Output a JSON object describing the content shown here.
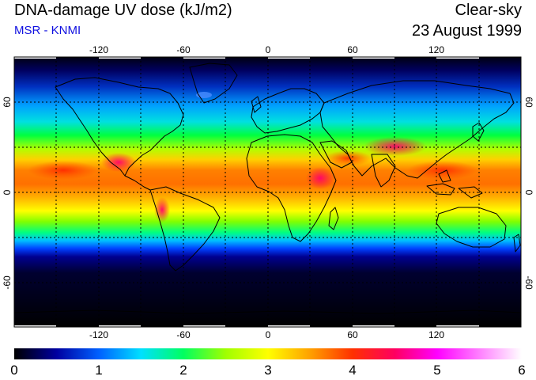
{
  "header": {
    "title": "DNA-damage UV dose (kJ/m2)",
    "source": "MSR - KNMI",
    "condition": "Clear-sky",
    "date": "23 August 1999"
  },
  "map": {
    "longitude_ticks": [
      "-120",
      "-60",
      "0",
      "60",
      "120"
    ],
    "latitude_ticks": [
      "60",
      "0",
      "-60"
    ],
    "gridlines": true,
    "gridline_style": "dotted"
  },
  "colorbar": {
    "labels": [
      "0",
      "1",
      "2",
      "3",
      "4",
      "5",
      "6"
    ],
    "min": 0,
    "max": 6,
    "colors": [
      "#000000",
      "#0000a0",
      "#0060ff",
      "#00e0ff",
      "#00ff60",
      "#a0ff00",
      "#ffff00",
      "#ffa000",
      "#ff3000",
      "#ff0060",
      "#ff00ff",
      "#ff80ff",
      "#ffffff"
    ]
  },
  "colors": {
    "subtitle": "#1010e0",
    "land_outline": "#000000"
  }
}
